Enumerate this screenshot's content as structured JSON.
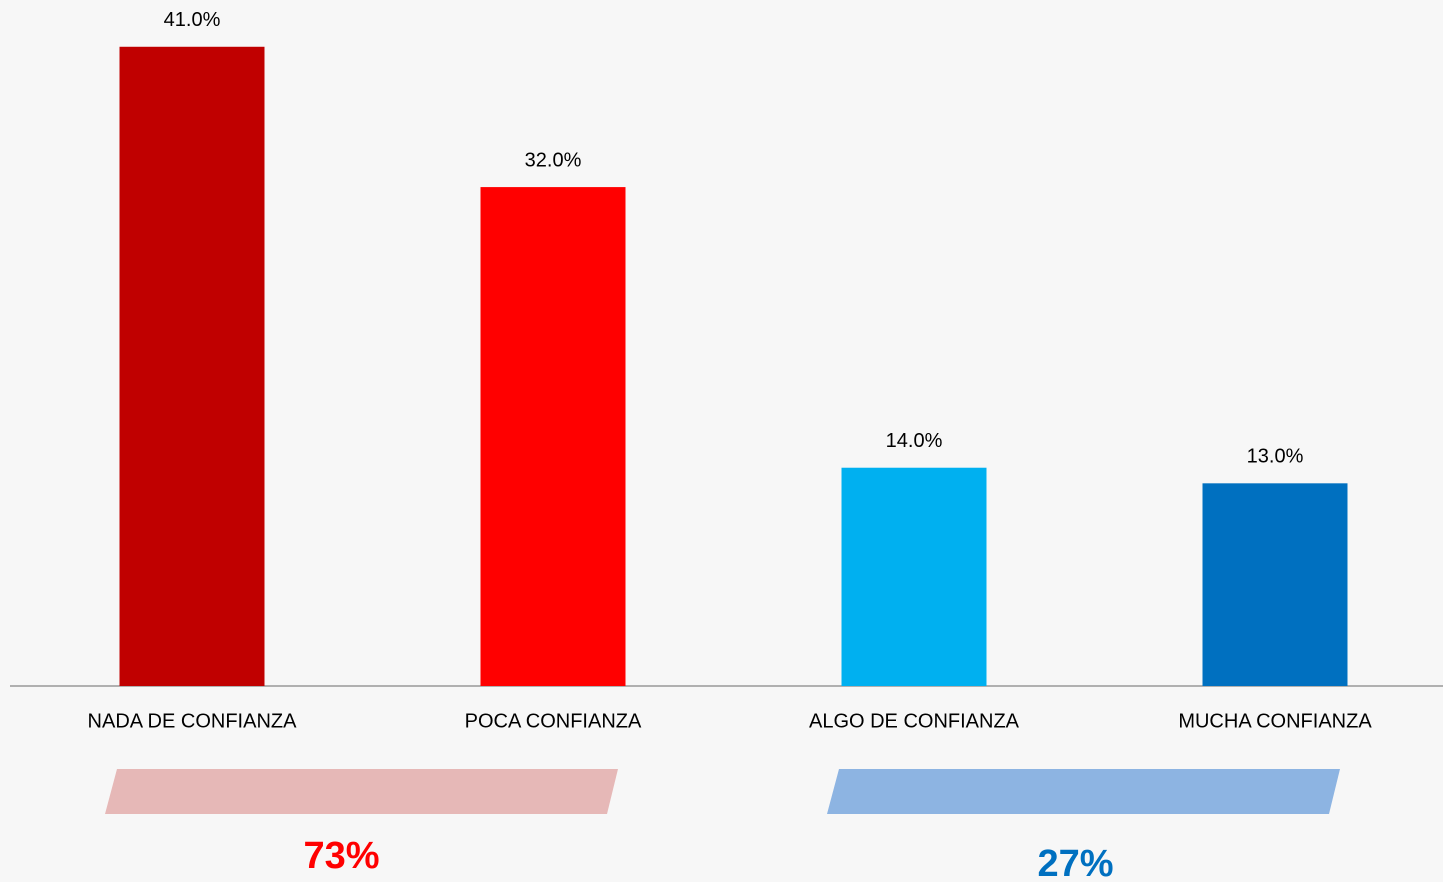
{
  "chart_data": {
    "type": "bar",
    "categories": [
      "NADA DE CONFIANZA",
      "POCA CONFIANZA",
      "ALGO DE CONFIANZA",
      "MUCHA CONFIANZA"
    ],
    "values": [
      41,
      32,
      14,
      13
    ],
    "value_labels": [
      "41.0%",
      "32.0%",
      "14.0%",
      "13.0%"
    ],
    "colors": [
      "#c00000",
      "#ff0000",
      "#00b0f0",
      "#0070c0"
    ],
    "ylim": [
      0,
      44
    ],
    "groups": [
      {
        "label": "73%",
        "categories": [
          "NADA DE CONFIANZA",
          "POCA CONFIANZA"
        ],
        "color": "#ff0000",
        "band_color": "#e6b8b7"
      },
      {
        "label": "27%",
        "categories": [
          "ALGO DE CONFIANZA",
          "MUCHA CONFIANZA"
        ],
        "color": "#0070c0",
        "band_color": "#8db4e2"
      }
    ]
  }
}
